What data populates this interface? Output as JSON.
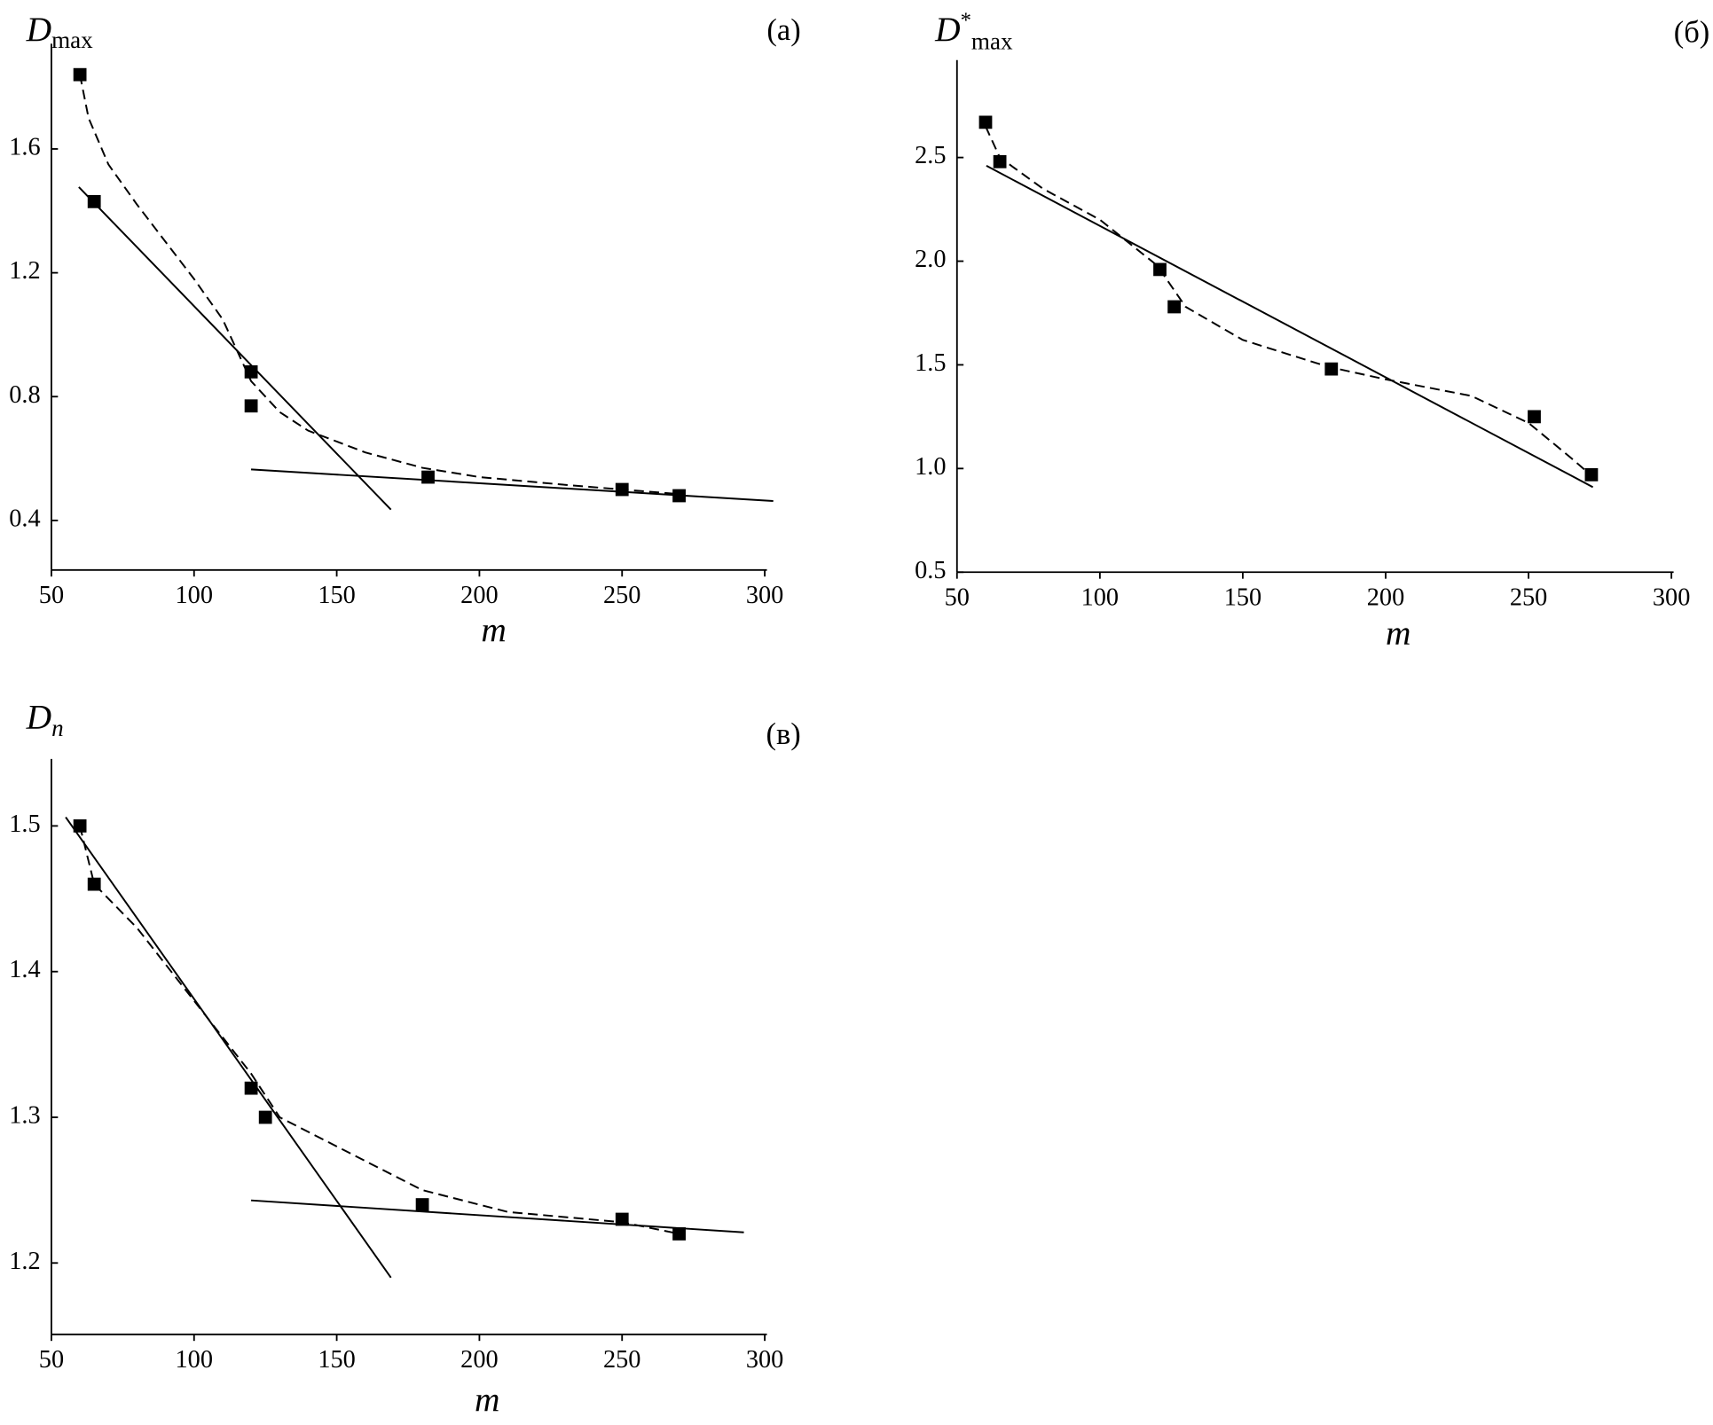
{
  "chart_data": [
    {
      "type": "scatter",
      "y_label": "D",
      "y_label_sub": "max",
      "panel_label": "(а)",
      "x_label": "m",
      "xlim": [
        50,
        300
      ],
      "xticks": [
        50,
        100,
        150,
        200,
        250,
        300
      ],
      "ylim": [
        0.24,
        1.94
      ],
      "yticks": [
        0.4,
        0.8,
        1.2,
        1.6
      ],
      "color": "#000000",
      "points": {
        "x": [
          60,
          65,
          120,
          120,
          182,
          250,
          270
        ],
        "values": [
          1.84,
          1.43,
          0.88,
          0.77,
          0.54,
          0.5,
          0.48
        ]
      },
      "fits": [
        {
          "style": "solid",
          "x": [
            59.6,
            169
          ],
          "values": [
            1.477,
            0.435
          ]
        },
        {
          "style": "solid",
          "x": [
            120,
            303
          ],
          "values": [
            0.565,
            0.463
          ]
        },
        {
          "style": "dashed",
          "x": [
            60,
            63,
            70,
            80,
            90,
            100,
            110,
            120,
            130,
            140,
            160,
            180,
            200,
            230,
            250,
            270
          ],
          "values": [
            1.84,
            1.7,
            1.55,
            1.42,
            1.3,
            1.18,
            1.05,
            0.85,
            0.75,
            0.69,
            0.62,
            0.57,
            0.54,
            0.515,
            0.5,
            0.485
          ]
        }
      ]
    },
    {
      "type": "scatter",
      "y_label": "D",
      "y_label_sup": "*",
      "y_label_sub": "max",
      "panel_label": "(б)",
      "x_label": "m",
      "xlim": [
        50,
        300
      ],
      "xticks": [
        50,
        100,
        150,
        200,
        250,
        300
      ],
      "ylim": [
        0.5,
        2.97
      ],
      "yticks": [
        0.5,
        {
          "value": 1,
          "label": "1.0"
        },
        1.5,
        {
          "value": 2,
          "label": "2.0"
        },
        2.5
      ],
      "color": "#000000",
      "points": {
        "x": [
          60,
          65,
          121,
          126,
          181,
          252,
          272
        ],
        "values": [
          2.67,
          2.48,
          1.96,
          1.78,
          1.48,
          1.25,
          0.97
        ]
      },
      "fits": [
        {
          "style": "solid",
          "x": [
            60.3,
            272.5
          ],
          "values": [
            2.46,
            0.91
          ]
        },
        {
          "style": "dashed",
          "x": [
            60,
            65,
            80,
            100,
            120,
            130,
            150,
            180,
            200,
            230,
            250,
            265,
            270
          ],
          "values": [
            2.65,
            2.5,
            2.35,
            2.2,
            1.98,
            1.78,
            1.62,
            1.49,
            1.43,
            1.35,
            1.22,
            1.05,
            0.99
          ]
        }
      ]
    },
    {
      "type": "scatter",
      "y_label": "D",
      "y_label_sub": "n",
      "panel_label": "(в)",
      "x_label": "m",
      "xlim": [
        50,
        300
      ],
      "xticks": [
        50,
        100,
        150,
        200,
        250,
        300
      ],
      "ylim": [
        1.151,
        1.546
      ],
      "yticks": [
        1.2,
        1.3,
        1.4,
        1.5
      ],
      "color": "#000000",
      "points": {
        "x": [
          60,
          65,
          120,
          125,
          180,
          250,
          270
        ],
        "values": [
          1.5,
          1.46,
          1.32,
          1.3,
          1.24,
          1.23,
          1.22
        ]
      },
      "fits": [
        {
          "style": "solid",
          "x": [
            55,
            169
          ],
          "values": [
            1.506,
            1.19
          ]
        },
        {
          "style": "solid",
          "x": [
            120,
            292.7
          ],
          "values": [
            1.243,
            1.221
          ]
        },
        {
          "style": "dashed",
          "x": [
            60,
            65,
            80,
            100,
            120,
            130,
            150,
            180,
            210,
            250,
            270
          ],
          "values": [
            1.5,
            1.46,
            1.43,
            1.38,
            1.33,
            1.3,
            1.28,
            1.25,
            1.235,
            1.228,
            1.22
          ]
        }
      ]
    }
  ]
}
